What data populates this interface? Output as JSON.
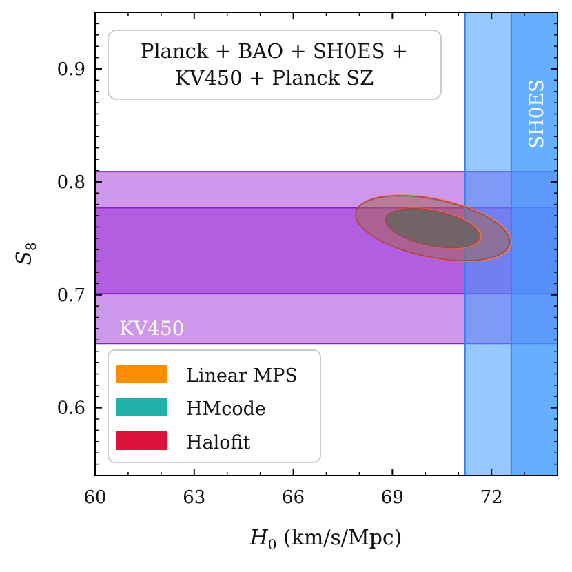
{
  "chart_data": {
    "type": "contour",
    "title": "",
    "xlabel_sym": "H",
    "xlabel_sub": "0",
    "xlabel_unit": " (km/s/Mpc)",
    "ylabel_sym": "S",
    "ylabel_sub": "8",
    "xlim": [
      60,
      74
    ],
    "ylim": [
      0.54,
      0.95
    ],
    "xticks": [
      60,
      63,
      66,
      69,
      72
    ],
    "xtick_labels": [
      "60",
      "63",
      "66",
      "69",
      "72"
    ],
    "yticks": [
      0.6,
      0.7,
      0.8,
      0.9
    ],
    "ytick_labels": [
      "0.6",
      "0.7",
      "0.8",
      "0.9"
    ],
    "info_box": [
      "Planck + BAO + SH0ES +",
      "KV450 + Planck SZ"
    ],
    "bands": [
      {
        "name": "KV450",
        "axis": "y",
        "outer": [
          0.657,
          0.809
        ],
        "inner": [
          0.701,
          0.777
        ],
        "color": "#9b30d9"
      },
      {
        "name": "SH0ES",
        "axis": "x",
        "outer": [
          71.2,
          74.0
        ],
        "inner": [
          72.6,
          74.0
        ],
        "color": "#3f9bff"
      }
    ],
    "series": [
      {
        "name": "Linear MPS",
        "color": "#ff8c00",
        "center": [
          70.25,
          0.759
        ],
        "sigma": [
          0.95,
          0.0118
        ],
        "rho": -0.42
      },
      {
        "name": "HMcode",
        "color": "#20b2aa",
        "center": [
          70.2,
          0.759
        ],
        "sigma": [
          0.93,
          0.0114
        ],
        "rho": -0.42
      },
      {
        "name": "Halofit",
        "color": "#dc143c",
        "center": [
          70.22,
          0.759
        ],
        "sigma": [
          0.94,
          0.0116
        ],
        "rho": -0.42
      }
    ],
    "legend": {
      "position": "lower-left"
    }
  }
}
